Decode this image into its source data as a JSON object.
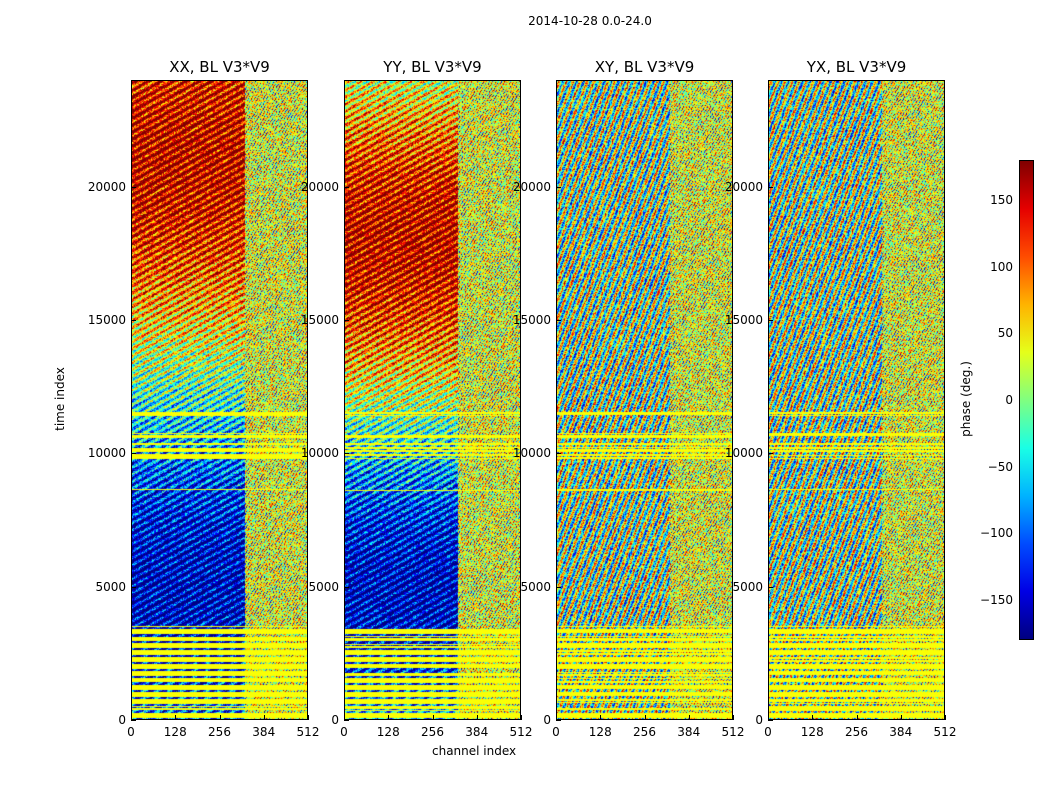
{
  "figure_title": "2014-10-28 0.0-24.0",
  "chart_data": {
    "type": "heatmap",
    "xlabel": "channel index",
    "ylabel": "time index",
    "xlim": [
      0,
      512
    ],
    "ylim": [
      0,
      24000
    ],
    "xticks": [
      "0",
      "128",
      "256",
      "384",
      "512"
    ],
    "xtick_values": [
      0,
      128,
      256,
      384,
      512
    ],
    "yticks": [
      "0",
      "5000",
      "10000",
      "15000",
      "20000"
    ],
    "ytick_values": [
      0,
      5000,
      10000,
      15000,
      20000
    ],
    "colormap": "jet",
    "panels": [
      {
        "title": "XX, BL V3*V9",
        "pol": "XX"
      },
      {
        "title": "YY, BL V3*V9",
        "pol": "YY"
      },
      {
        "title": "XY, BL V3*V9",
        "pol": "XY"
      },
      {
        "title": "YX, BL V3*V9",
        "pol": "YX"
      }
    ],
    "colorbar": {
      "label": "phase (deg.)",
      "range": [
        -180,
        180
      ],
      "ticks": [
        "150",
        "100",
        "50",
        "0",
        "−50",
        "−100",
        "−150"
      ],
      "tick_values": [
        150,
        100,
        50,
        0,
        -50,
        -100,
        -150
      ]
    },
    "flagged_time_bands": [
      [
        0,
        3500
      ],
      [
        9800,
        10400
      ],
      [
        8600,
        8700
      ],
      [
        10600,
        10800
      ],
      [
        11400,
        11600
      ]
    ],
    "flagged_channel_start": 330
  }
}
